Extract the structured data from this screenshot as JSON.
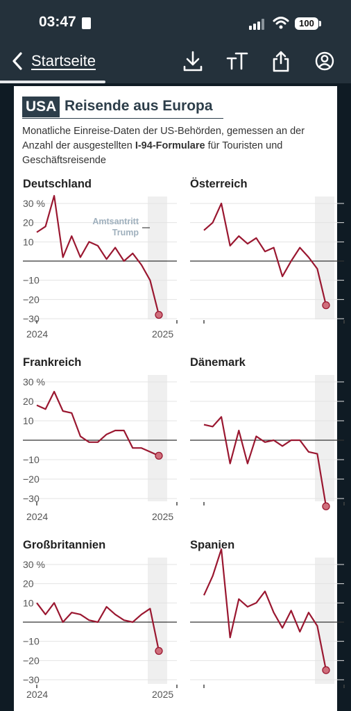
{
  "status_bar": {
    "time": "03:47",
    "battery": "100"
  },
  "nav": {
    "back_label": "Startseite",
    "icons": [
      "download-icon",
      "text-size-icon",
      "share-icon",
      "account-icon"
    ]
  },
  "article": {
    "badge": "USA",
    "title": "Reisende aus Europa",
    "subtitle_part1": "Monatliche Einreise-Daten der US-Behörden, gemessen an der Anzahl der ausgestellten ",
    "subtitle_bold": "I-94-Formulare",
    "subtitle_part2": " für Touristen und Geschäftsreisende"
  },
  "colors": {
    "line": "#9a1730",
    "marker": "#cf6f7c",
    "shade": "#efefef",
    "grid": "#e3e3e3",
    "zero": "#333333"
  },
  "chart_data": {
    "type": "line",
    "unit": "%",
    "ylim": [
      -35,
      35
    ],
    "yticks": [
      "30 %",
      "20",
      "10",
      "−10",
      "−20",
      "−30"
    ],
    "x_labels": [
      "2024",
      "2025"
    ],
    "shaded_period": "Amtsantritt Trump",
    "annotation": [
      "Amtsantritt",
      "Trump"
    ],
    "panels": [
      {
        "name": "Deutschland",
        "values": [
          15,
          18,
          34,
          2,
          13,
          2,
          10,
          8,
          1,
          7,
          0,
          4,
          -2,
          -10,
          -28
        ]
      },
      {
        "name": "Österreich",
        "values": [
          16,
          20,
          30,
          8,
          13,
          9,
          12,
          5,
          7,
          -8,
          0,
          7,
          2,
          -4,
          -23
        ]
      },
      {
        "name": "Frankreich",
        "values": [
          18,
          16,
          25,
          15,
          14,
          2,
          -1,
          -1,
          3,
          5,
          5,
          -4,
          -4,
          -6,
          -8
        ]
      },
      {
        "name": "Dänemark",
        "values": [
          8,
          7,
          12,
          -12,
          5,
          -12,
          2,
          -1,
          0,
          -3,
          0,
          0,
          -6,
          -7,
          -34
        ]
      },
      {
        "name": "Großbritannien",
        "values": [
          10,
          4,
          10,
          0,
          5,
          4,
          1,
          0,
          8,
          4,
          1,
          0,
          4,
          7,
          -15
        ]
      },
      {
        "name": "Spanien",
        "values": [
          14,
          24,
          38,
          -8,
          12,
          8,
          10,
          16,
          5,
          -3,
          6,
          -5,
          5,
          -2,
          -25
        ]
      }
    ]
  }
}
